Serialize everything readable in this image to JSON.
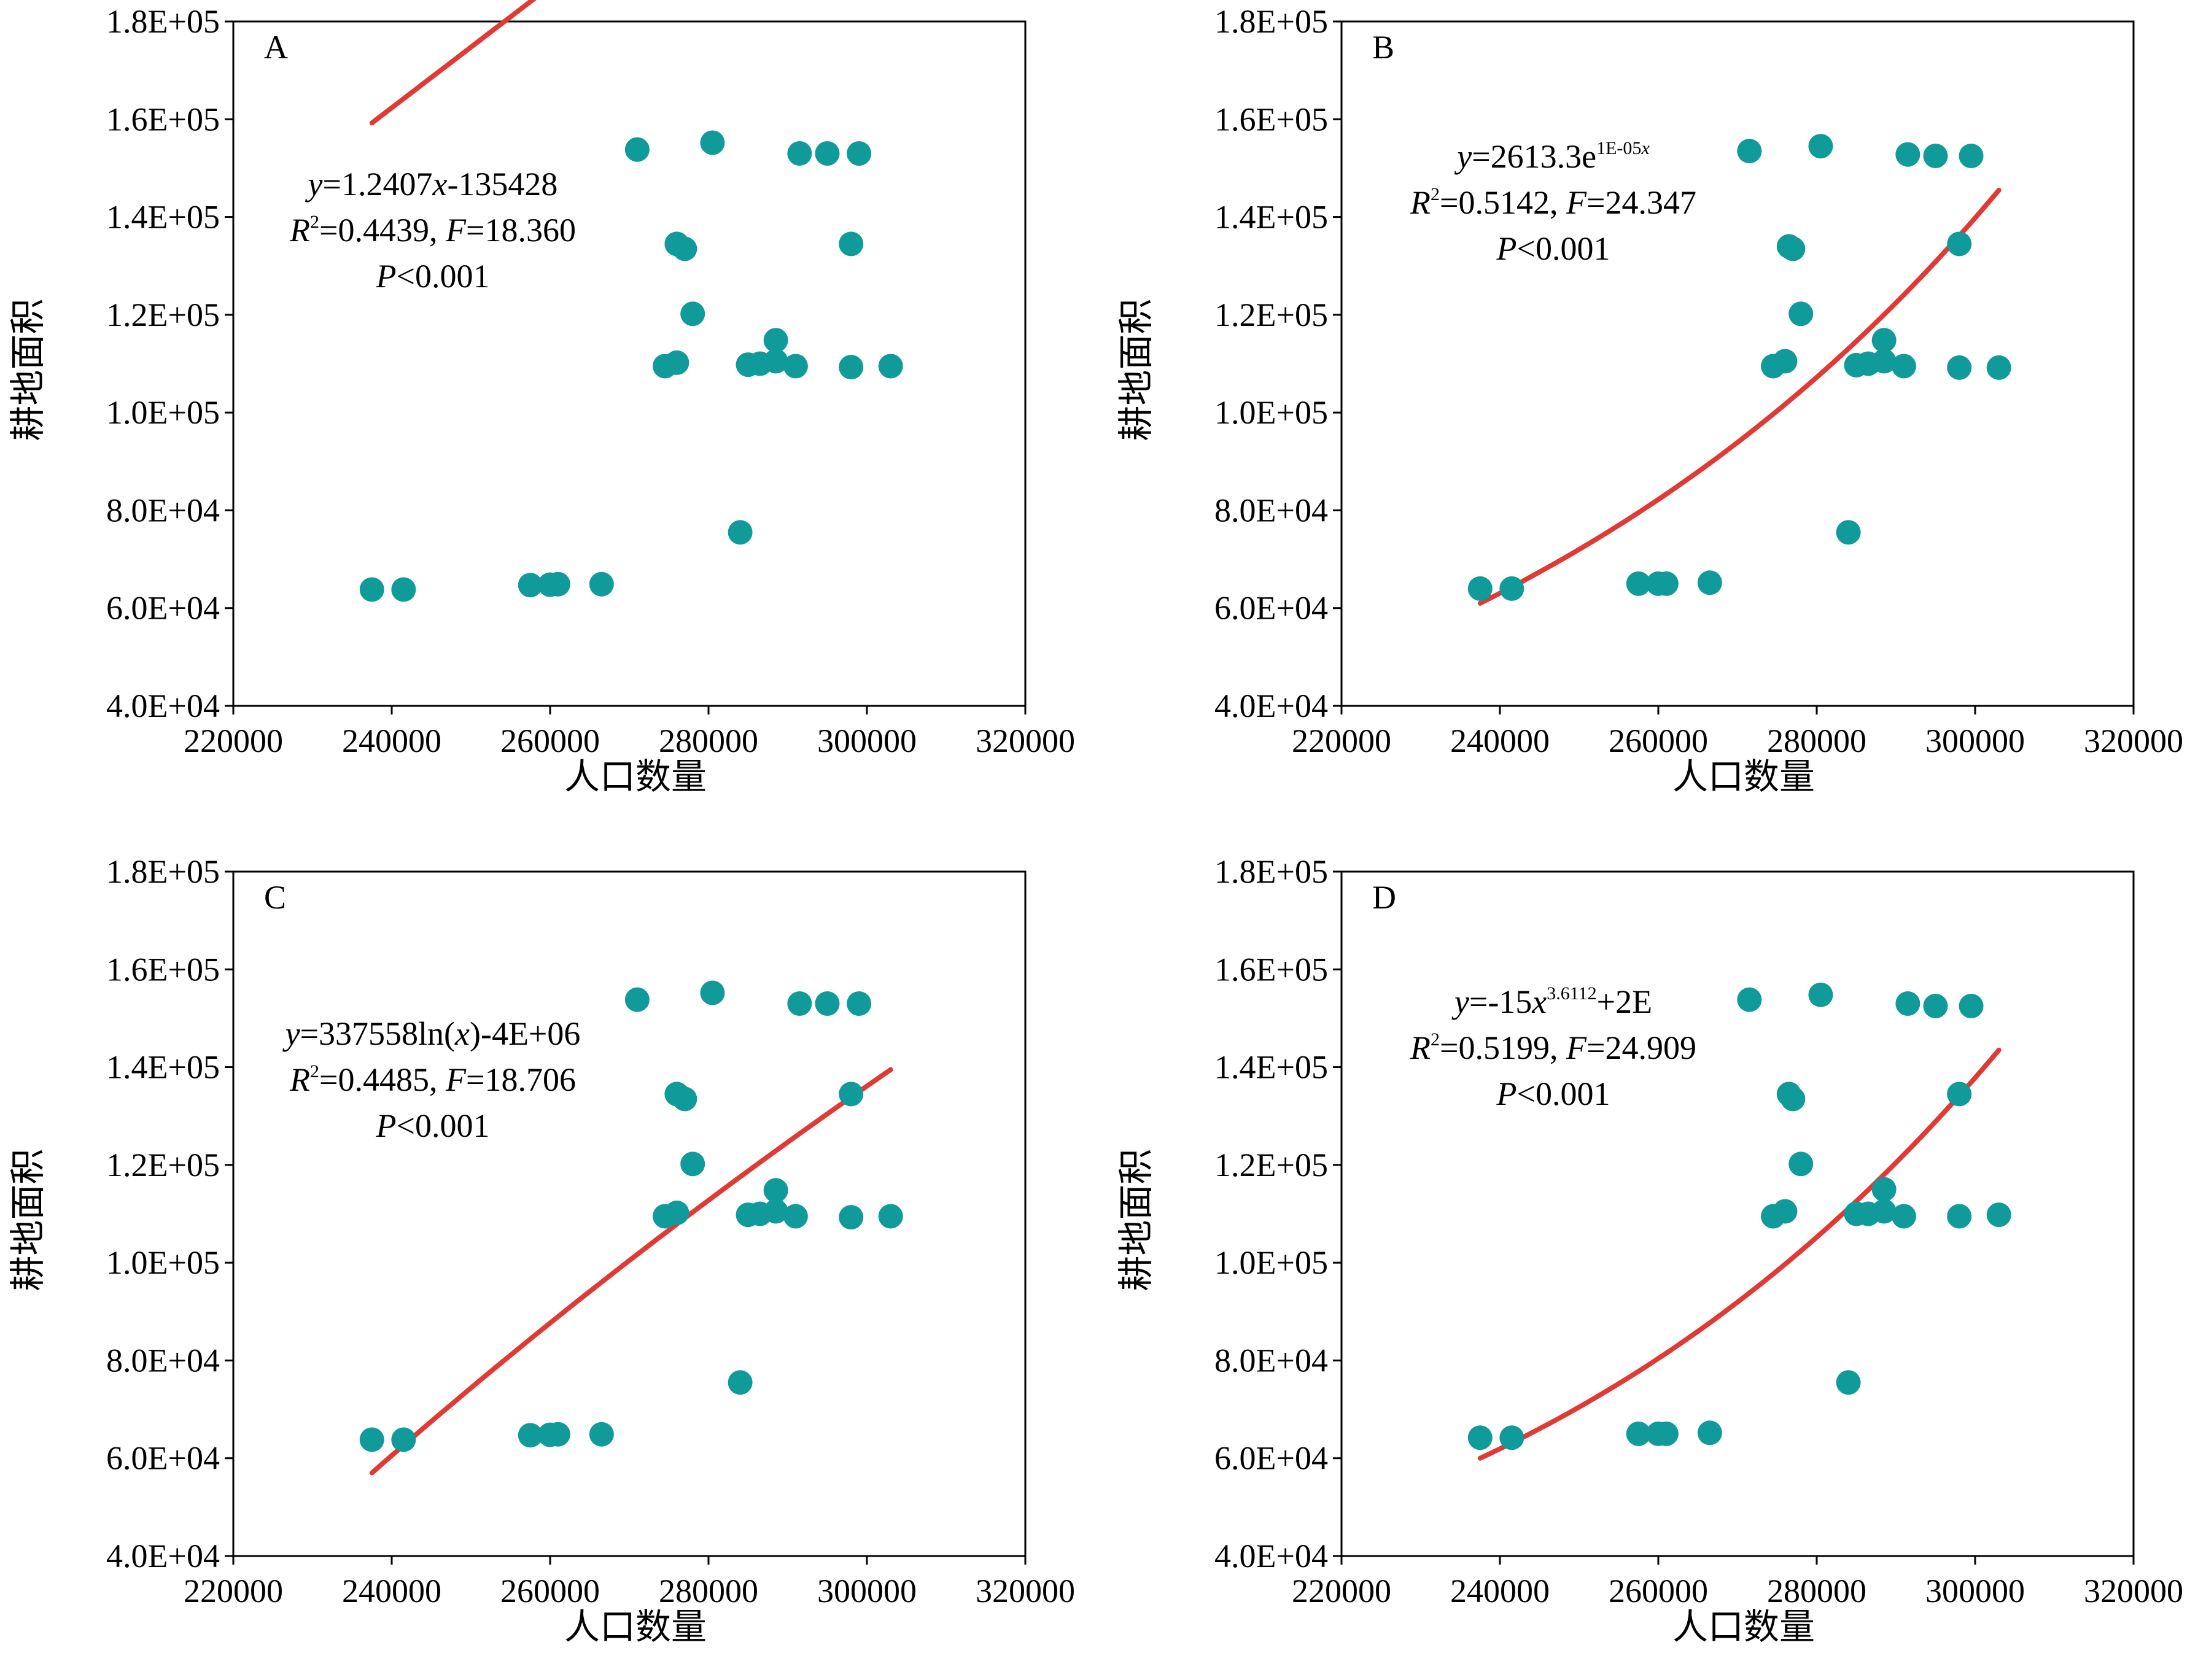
{
  "colors": {
    "point": "#109a9a",
    "fit_line": "#e03a35",
    "axis": "#000000"
  },
  "chart_data": [
    {
      "type": "scatter",
      "panel_label": "A",
      "xlabel": "人口数量",
      "ylabel": "耕地面积",
      "xlim": [
        220000,
        320000
      ],
      "ylim": [
        40000,
        180000
      ],
      "x_ticks": [
        "220000",
        "240000",
        "260000",
        "280000",
        "300000",
        "320000"
      ],
      "y_ticks": [
        "4.0E+04",
        "6.0E+04",
        "8.0E+04",
        "1.0E+05",
        "1.2E+05",
        "1.4E+05",
        "1.6E+05",
        "1.8E+05"
      ],
      "equation": {
        "line1": [
          {
            "t": "y",
            "i": true
          },
          {
            "t": "=1.2407"
          },
          {
            "t": "x",
            "i": true
          },
          {
            "t": "-135428"
          }
        ],
        "line2": [
          {
            "t": "R",
            "i": true
          },
          {
            "t": "2",
            "sup": true
          },
          {
            "t": "=0.4439, "
          },
          {
            "t": "F",
            "i": true
          },
          {
            "t": "=18.360"
          }
        ],
        "line3": [
          {
            "t": "P",
            "i": true
          },
          {
            "t": "<0.001"
          }
        ]
      },
      "fit": {
        "model": "linear",
        "a": 1.2407,
        "b": -135428,
        "x_range": [
          237500,
          303000
        ]
      },
      "points": [
        [
          237500,
          63800
        ],
        [
          241500,
          63800
        ],
        [
          257500,
          64700
        ],
        [
          260000,
          64800
        ],
        [
          261000,
          64900
        ],
        [
          266500,
          64900
        ],
        [
          271000,
          153800
        ],
        [
          274500,
          109500
        ],
        [
          276000,
          110200
        ],
        [
          276000,
          134500
        ],
        [
          277000,
          133500
        ],
        [
          278000,
          120200
        ],
        [
          280500,
          155200
        ],
        [
          284000,
          75500
        ],
        [
          285000,
          109800
        ],
        [
          286500,
          110000
        ],
        [
          288500,
          114800
        ],
        [
          288500,
          110500
        ],
        [
          291000,
          109500
        ],
        [
          291500,
          153000
        ],
        [
          295000,
          153000
        ],
        [
          298000,
          134500
        ],
        [
          298000,
          109300
        ],
        [
          299000,
          153000
        ],
        [
          303000,
          109500
        ]
      ]
    },
    {
      "type": "scatter",
      "panel_label": "B",
      "xlabel": "人口数量",
      "ylabel": "耕地面积",
      "xlim": [
        220000,
        320000
      ],
      "ylim": [
        40000,
        180000
      ],
      "x_ticks": [
        "220000",
        "240000",
        "260000",
        "280000",
        "300000",
        "320000"
      ],
      "y_ticks": [
        "4.0E+04",
        "6.0E+04",
        "8.0E+04",
        "1.0E+05",
        "1.2E+05",
        "1.4E+05",
        "1.6E+05",
        "1.8E+05"
      ],
      "equation": {
        "line1": [
          {
            "t": "y",
            "i": true
          },
          {
            "t": "=2613.3e"
          },
          {
            "t": "1E-05",
            "sup": true
          },
          {
            "t": "x",
            "sup": true,
            "i": true
          }
        ],
        "line2": [
          {
            "t": "R",
            "i": true
          },
          {
            "t": "2",
            "sup": true
          },
          {
            "t": "=0.5142, "
          },
          {
            "t": "F",
            "i": true
          },
          {
            "t": "=24.347"
          }
        ],
        "line3": [
          {
            "t": "P",
            "i": true
          },
          {
            "t": "<0.001"
          }
        ]
      },
      "fit": {
        "model": "exponential",
        "x_range": [
          237500,
          303000
        ],
        "y_range": [
          61000,
          145500
        ]
      },
      "points": [
        [
          237500,
          64000
        ],
        [
          241500,
          64000
        ],
        [
          257500,
          65000
        ],
        [
          260000,
          65000
        ],
        [
          261000,
          65000
        ],
        [
          266500,
          65200
        ],
        [
          271500,
          153500
        ],
        [
          274500,
          109500
        ],
        [
          276000,
          110500
        ],
        [
          276500,
          134000
        ],
        [
          277000,
          133500
        ],
        [
          278000,
          120200
        ],
        [
          280500,
          154500
        ],
        [
          284000,
          75500
        ],
        [
          285000,
          109700
        ],
        [
          286500,
          110000
        ],
        [
          288500,
          114800
        ],
        [
          288500,
          110500
        ],
        [
          291000,
          109500
        ],
        [
          291500,
          152800
        ],
        [
          295000,
          152500
        ],
        [
          298000,
          134500
        ],
        [
          298000,
          109200
        ],
        [
          299500,
          152500
        ],
        [
          303000,
          109200
        ]
      ]
    },
    {
      "type": "scatter",
      "panel_label": "C",
      "xlabel": "人口数量",
      "ylabel": "耕地面积",
      "xlim": [
        220000,
        320000
      ],
      "ylim": [
        40000,
        180000
      ],
      "x_ticks": [
        "220000",
        "240000",
        "260000",
        "280000",
        "300000",
        "320000"
      ],
      "y_ticks": [
        "4.0E+04",
        "6.0E+04",
        "8.0E+04",
        "1.0E+05",
        "1.2E+05",
        "1.4E+05",
        "1.6E+05",
        "1.8E+05"
      ],
      "equation": {
        "line1": [
          {
            "t": "y",
            "i": true
          },
          {
            "t": "=337558ln("
          },
          {
            "t": "x",
            "i": true
          },
          {
            "t": ")-4E+06"
          }
        ],
        "line2": [
          {
            "t": "R",
            "i": true
          },
          {
            "t": "2",
            "sup": true
          },
          {
            "t": "=0.4485, "
          },
          {
            "t": "F",
            "i": true
          },
          {
            "t": "=18.706"
          }
        ],
        "line3": [
          {
            "t": "P",
            "i": true
          },
          {
            "t": "<0.001"
          }
        ]
      },
      "fit": {
        "model": "logarithmic",
        "x_range": [
          237500,
          303000
        ],
        "y_range": [
          57000,
          139500
        ]
      },
      "points": [
        [
          237500,
          63800
        ],
        [
          241500,
          63800
        ],
        [
          257500,
          64700
        ],
        [
          260000,
          64800
        ],
        [
          261000,
          64900
        ],
        [
          266500,
          64900
        ],
        [
          271000,
          153800
        ],
        [
          274500,
          109500
        ],
        [
          276000,
          110200
        ],
        [
          276000,
          134500
        ],
        [
          277000,
          133500
        ],
        [
          278000,
          120200
        ],
        [
          280500,
          155200
        ],
        [
          284000,
          75500
        ],
        [
          285000,
          109800
        ],
        [
          286500,
          110000
        ],
        [
          288500,
          114800
        ],
        [
          288500,
          110500
        ],
        [
          291000,
          109500
        ],
        [
          291500,
          153000
        ],
        [
          295000,
          153000
        ],
        [
          298000,
          134500
        ],
        [
          298000,
          109300
        ],
        [
          299000,
          153000
        ],
        [
          303000,
          109500
        ]
      ]
    },
    {
      "type": "scatter",
      "panel_label": "D",
      "xlabel": "人口数量",
      "ylabel": "耕地面积",
      "xlim": [
        220000,
        320000
      ],
      "ylim": [
        40000,
        180000
      ],
      "x_ticks": [
        "220000",
        "240000",
        "260000",
        "280000",
        "300000",
        "320000"
      ],
      "y_ticks": [
        "4.0E+04",
        "6.0E+04",
        "8.0E+04",
        "1.0E+05",
        "1.2E+05",
        "1.4E+05",
        "1.6E+05",
        "1.8E+05"
      ],
      "equation": {
        "line1": [
          {
            "t": "y",
            "i": true
          },
          {
            "t": "=-15"
          },
          {
            "t": "x",
            "i": true
          },
          {
            "t": "3.6112",
            "sup": true
          },
          {
            "t": "+2E"
          }
        ],
        "line2": [
          {
            "t": "R",
            "i": true
          },
          {
            "t": "2",
            "sup": true
          },
          {
            "t": "=0.5199, "
          },
          {
            "t": "F",
            "i": true
          },
          {
            "t": "=24.909"
          }
        ],
        "line3": [
          {
            "t": "P",
            "i": true
          },
          {
            "t": "<0.001"
          }
        ]
      },
      "fit": {
        "model": "power",
        "x_range": [
          237500,
          303000
        ],
        "y_range": [
          60000,
          143500
        ]
      },
      "points": [
        [
          237500,
          64200
        ],
        [
          241500,
          64200
        ],
        [
          257500,
          65000
        ],
        [
          260000,
          65000
        ],
        [
          261000,
          65000
        ],
        [
          266500,
          65200
        ],
        [
          271500,
          153800
        ],
        [
          274500,
          109500
        ],
        [
          276000,
          110500
        ],
        [
          276500,
          134500
        ],
        [
          277000,
          133500
        ],
        [
          278000,
          120200
        ],
        [
          280500,
          154800
        ],
        [
          284000,
          75500
        ],
        [
          285000,
          110000
        ],
        [
          286500,
          110000
        ],
        [
          288500,
          115000
        ],
        [
          288500,
          110500
        ],
        [
          291000,
          109500
        ],
        [
          291500,
          153000
        ],
        [
          295000,
          152500
        ],
        [
          298000,
          134500
        ],
        [
          298000,
          109500
        ],
        [
          299500,
          152500
        ],
        [
          303000,
          109800
        ]
      ]
    }
  ]
}
